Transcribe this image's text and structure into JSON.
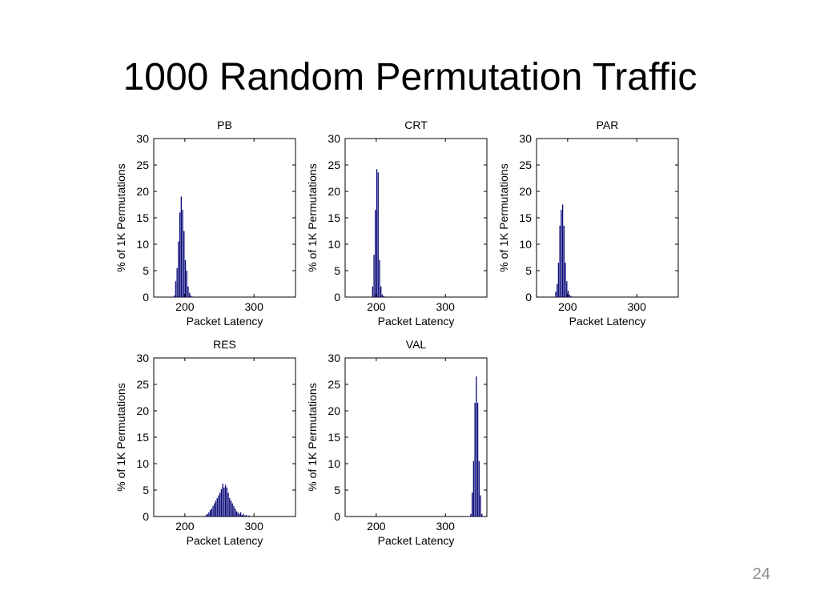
{
  "slide": {
    "title": "1000 Random Permutation Traffic",
    "page_number": "24"
  },
  "colors": {
    "bar": "#0a0a7a",
    "axis": "#000000"
  },
  "chart_data": [
    {
      "type": "bar",
      "title": "PB",
      "xlabel": "Packet Latency",
      "ylabel": "% of 1K Permutations",
      "xlim": [
        155,
        360
      ],
      "ylim": [
        0,
        30
      ],
      "xticks": [
        200,
        300
      ],
      "yticks": [
        0,
        5,
        10,
        15,
        20,
        25,
        30
      ],
      "bin_width": 2,
      "bins": [
        {
          "x": 185,
          "y": 0.3
        },
        {
          "x": 187,
          "y": 3
        },
        {
          "x": 189,
          "y": 5.5
        },
        {
          "x": 191,
          "y": 10.5
        },
        {
          "x": 193,
          "y": 16
        },
        {
          "x": 195,
          "y": 19
        },
        {
          "x": 197,
          "y": 16.5
        },
        {
          "x": 199,
          "y": 12.5
        },
        {
          "x": 201,
          "y": 7
        },
        {
          "x": 203,
          "y": 5
        },
        {
          "x": 205,
          "y": 2
        },
        {
          "x": 207,
          "y": 0.8
        },
        {
          "x": 209,
          "y": 0.3
        },
        {
          "x": 211,
          "y": 0.1
        }
      ]
    },
    {
      "type": "bar",
      "title": "CRT",
      "xlabel": "Packet Latency",
      "ylabel": "% of 1K Permutations",
      "xlim": [
        155,
        360
      ],
      "ylim": [
        0,
        30
      ],
      "xticks": [
        200,
        300
      ],
      "yticks": [
        0,
        5,
        10,
        15,
        20,
        25,
        30
      ],
      "bin_width": 2,
      "bins": [
        {
          "x": 195,
          "y": 2
        },
        {
          "x": 197,
          "y": 8
        },
        {
          "x": 199,
          "y": 16.5
        },
        {
          "x": 201,
          "y": 24.2
        },
        {
          "x": 203,
          "y": 23.6
        },
        {
          "x": 205,
          "y": 7
        },
        {
          "x": 207,
          "y": 2
        },
        {
          "x": 209,
          "y": 0.5
        },
        {
          "x": 211,
          "y": 0.2
        }
      ]
    },
    {
      "type": "bar",
      "title": "PAR",
      "xlabel": "Packet Latency",
      "ylabel": "% of 1K Permutations",
      "xlim": [
        155,
        360
      ],
      "ylim": [
        0,
        30
      ],
      "xticks": [
        200,
        300
      ],
      "yticks": [
        0,
        5,
        10,
        15,
        20,
        25,
        30
      ],
      "bin_width": 2,
      "bins": [
        {
          "x": 183,
          "y": 1
        },
        {
          "x": 185,
          "y": 2.5
        },
        {
          "x": 187,
          "y": 6.5
        },
        {
          "x": 189,
          "y": 13.5
        },
        {
          "x": 191,
          "y": 16.5
        },
        {
          "x": 193,
          "y": 17.5
        },
        {
          "x": 195,
          "y": 13.5
        },
        {
          "x": 197,
          "y": 6.5
        },
        {
          "x": 199,
          "y": 3
        },
        {
          "x": 201,
          "y": 1.2
        },
        {
          "x": 203,
          "y": 0.5
        },
        {
          "x": 205,
          "y": 0.2
        },
        {
          "x": 207,
          "y": 0.1
        }
      ]
    },
    {
      "type": "bar",
      "title": "RES",
      "xlabel": "Packet Latency",
      "ylabel": "% of 1K Permutations",
      "xlim": [
        155,
        360
      ],
      "ylim": [
        0,
        30
      ],
      "xticks": [
        200,
        300
      ],
      "yticks": [
        0,
        5,
        10,
        15,
        20,
        25,
        30
      ],
      "bin_width": 2,
      "bins": [
        {
          "x": 231,
          "y": 0.3
        },
        {
          "x": 233,
          "y": 0.5
        },
        {
          "x": 235,
          "y": 0.8
        },
        {
          "x": 237,
          "y": 1.2
        },
        {
          "x": 239,
          "y": 1.5
        },
        {
          "x": 241,
          "y": 2
        },
        {
          "x": 243,
          "y": 2.5
        },
        {
          "x": 245,
          "y": 3
        },
        {
          "x": 247,
          "y": 3.5
        },
        {
          "x": 249,
          "y": 4
        },
        {
          "x": 251,
          "y": 4.5
        },
        {
          "x": 253,
          "y": 5.2
        },
        {
          "x": 255,
          "y": 6.2
        },
        {
          "x": 257,
          "y": 5.5
        },
        {
          "x": 259,
          "y": 6
        },
        {
          "x": 261,
          "y": 5.5
        },
        {
          "x": 263,
          "y": 4.5
        },
        {
          "x": 265,
          "y": 3.5
        },
        {
          "x": 267,
          "y": 3
        },
        {
          "x": 269,
          "y": 2.5
        },
        {
          "x": 271,
          "y": 2
        },
        {
          "x": 273,
          "y": 1.5
        },
        {
          "x": 275,
          "y": 1
        },
        {
          "x": 277,
          "y": 0.8
        },
        {
          "x": 279,
          "y": 0.5
        },
        {
          "x": 281,
          "y": 0.8
        },
        {
          "x": 283,
          "y": 0.3
        },
        {
          "x": 285,
          "y": 0.5
        },
        {
          "x": 287,
          "y": 0.2
        },
        {
          "x": 289,
          "y": 0.3
        },
        {
          "x": 291,
          "y": 0.1
        },
        {
          "x": 293,
          "y": 0.2
        }
      ]
    },
    {
      "type": "bar",
      "title": "VAL",
      "xlabel": "Packet Latency",
      "ylabel": "% of 1K Permutations",
      "xlim": [
        155,
        360
      ],
      "ylim": [
        0,
        30
      ],
      "xticks": [
        200,
        300
      ],
      "yticks": [
        0,
        5,
        10,
        15,
        20,
        25,
        30
      ],
      "bin_width": 2,
      "bins": [
        {
          "x": 337,
          "y": 0.5
        },
        {
          "x": 339,
          "y": 4.5
        },
        {
          "x": 341,
          "y": 10.5
        },
        {
          "x": 343,
          "y": 21.5
        },
        {
          "x": 345,
          "y": 26.5
        },
        {
          "x": 347,
          "y": 21.5
        },
        {
          "x": 349,
          "y": 10.5
        },
        {
          "x": 351,
          "y": 4
        },
        {
          "x": 353,
          "y": 0.5
        }
      ]
    }
  ]
}
